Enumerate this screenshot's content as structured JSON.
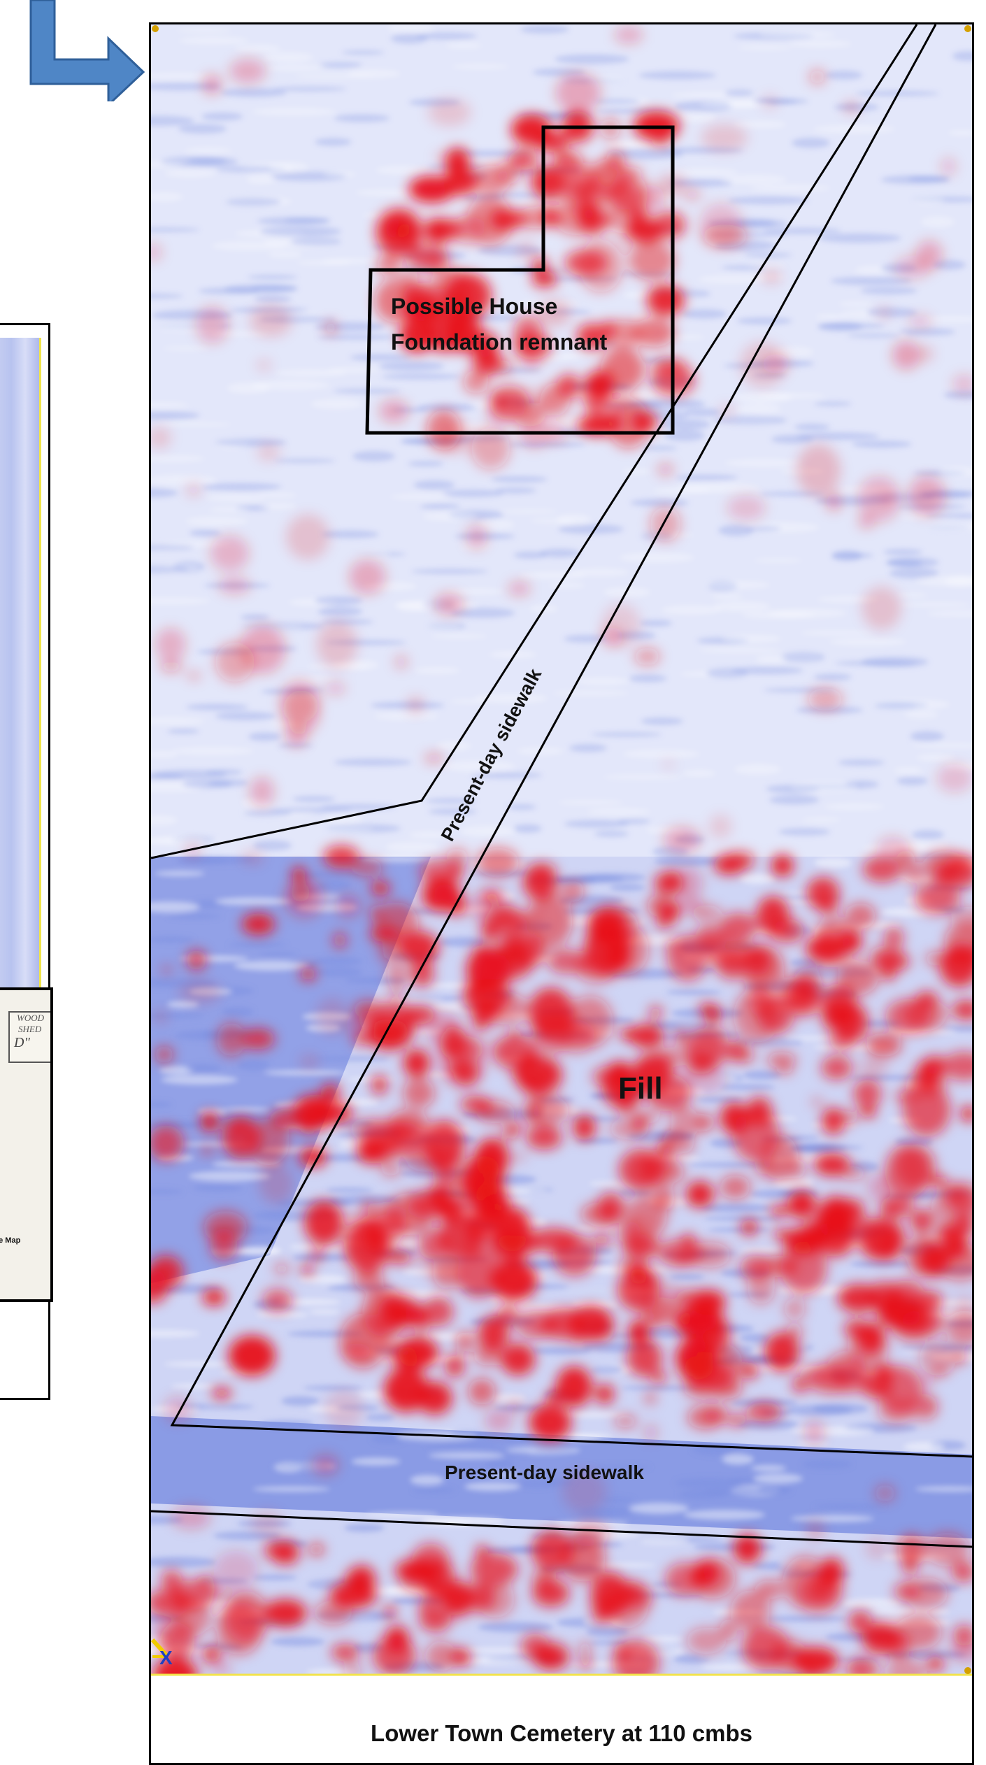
{
  "figure": {
    "caption": "Lower Town Cemetery at 110 cmbs",
    "colors": {
      "background": "#ffffff",
      "gpr_low": "#7a8fe0",
      "gpr_mid": "#dde3fb",
      "gpr_high": "#e8121a",
      "outline": "#000000",
      "arrow_fill": "#4f86c6",
      "arrow_stroke": "#2f5f99",
      "axis_marker": "#ffd400"
    }
  },
  "annotations": {
    "house_line1": "Possible House",
    "house_line2": "Foundation remnant",
    "sidewalk_diagonal": "Present-day sidewalk",
    "fill": "Fill",
    "sidewalk_bottom": "Present-day sidewalk"
  },
  "left_inset": {
    "map_label": "ce Map",
    "sketch_line1": "WOOD",
    "sketch_line2": "SHED",
    "sketch_line3": "D\""
  },
  "axis_marker_label": "X",
  "icons": {
    "arrow": "arrow-right-icon",
    "axis_marker": "axis-marker-icon"
  }
}
